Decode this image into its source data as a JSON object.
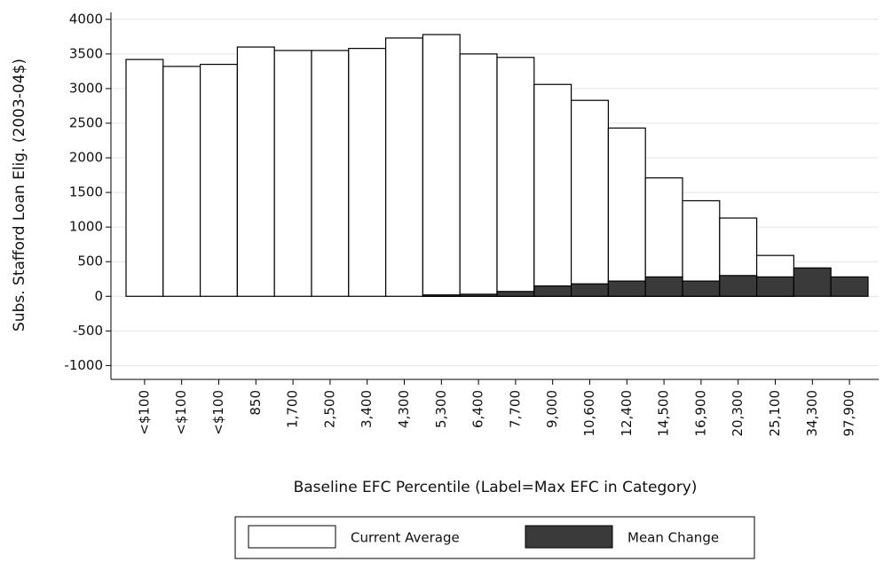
{
  "chart_data": {
    "type": "bar",
    "categories": [
      "<$100",
      "<$100",
      "<$100",
      "850",
      "1,700",
      "2,500",
      "3,400",
      "4,300",
      "5,300",
      "6,400",
      "7,700",
      "9,000",
      "10,600",
      "12,400",
      "14,500",
      "16,900",
      "20,300",
      "25,100",
      "34,300",
      "97,900"
    ],
    "series": [
      {
        "name": "Current Average",
        "color": "#ffffff",
        "values": [
          3420,
          3320,
          3350,
          3600,
          3550,
          3550,
          3580,
          3730,
          3780,
          3500,
          3450,
          3060,
          2830,
          2430,
          1710,
          1380,
          1130,
          590,
          null,
          null
        ]
      },
      {
        "name": "Mean Change",
        "color": "#3a3a3a",
        "values": [
          0,
          0,
          0,
          0,
          0,
          0,
          0,
          0,
          20,
          30,
          70,
          150,
          180,
          220,
          280,
          220,
          300,
          280,
          410,
          280
        ]
      }
    ],
    "y_label": "Subs. Stafford Loan Elig. (2003-04$)",
    "x_label": "Baseline EFC Percentile (Label=Max EFC in Category)",
    "ylim": [
      -1200,
      4100
    ],
    "yticks": [
      -1000,
      -500,
      0,
      500,
      1000,
      1500,
      2000,
      2500,
      3000,
      3500,
      4000
    ],
    "grid": true,
    "legend": "bottom"
  }
}
